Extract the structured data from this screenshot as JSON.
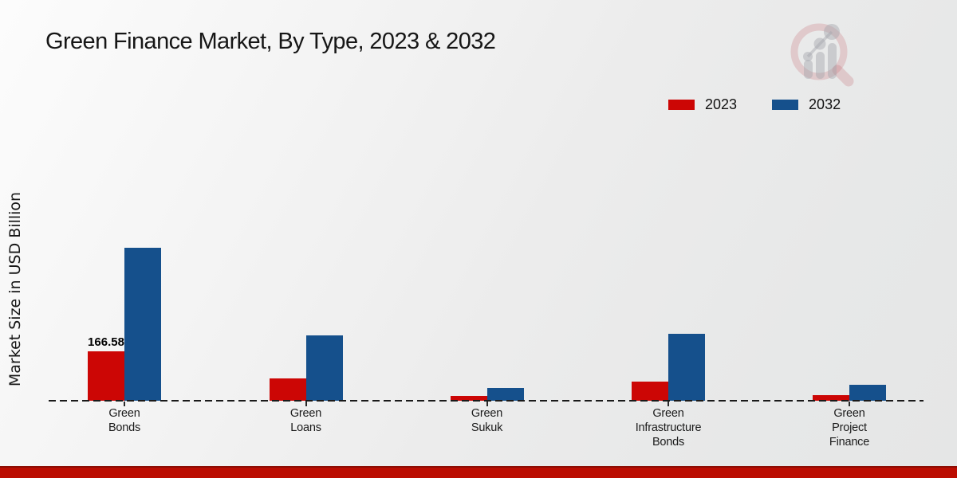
{
  "page": {
    "title": "Green Finance Market, By Type, 2023 & 2032"
  },
  "legend": {
    "items": [
      {
        "label": "2023",
        "color": "#cc0605"
      },
      {
        "label": "2032",
        "color": "#15508c"
      }
    ]
  },
  "ylabel": "Market Size in USD Billion",
  "chart_data": {
    "type": "bar",
    "title": "Green Finance Market, By Type, 2023 & 2032",
    "xlabel": "",
    "ylabel": "Market Size in USD Billion",
    "categories": [
      "Green Bonds",
      "Green Loans",
      "Green Sukuk",
      "Green Infrastructure Bonds",
      "Green Project Finance"
    ],
    "category_label_lines": [
      "Green\nBonds",
      "Green\nLoans",
      "Green\nSukuk",
      "Green\nInfrastructure\nBonds",
      "Green\nProject\nFinance"
    ],
    "series": [
      {
        "name": "2023",
        "color": "#cc0605",
        "values": [
          166.58,
          75,
          15,
          64,
          18
        ]
      },
      {
        "name": "2032",
        "color": "#15508c",
        "values": [
          516,
          220,
          43,
          226,
          54
        ]
      }
    ],
    "value_labels": [
      {
        "series": "2023",
        "category": "Green Bonds",
        "text": "166.58"
      }
    ],
    "ylim": [
      0,
      560
    ],
    "grid": false,
    "baseline_style": "dashed",
    "legend_position": "top-right"
  },
  "branding": {
    "logo_name": "market-research-magnifier-chart-watermark",
    "ring_color": "#bf5660",
    "bars_color": "#a3a7ac",
    "bottom_strip_color": "#bb0c01"
  }
}
